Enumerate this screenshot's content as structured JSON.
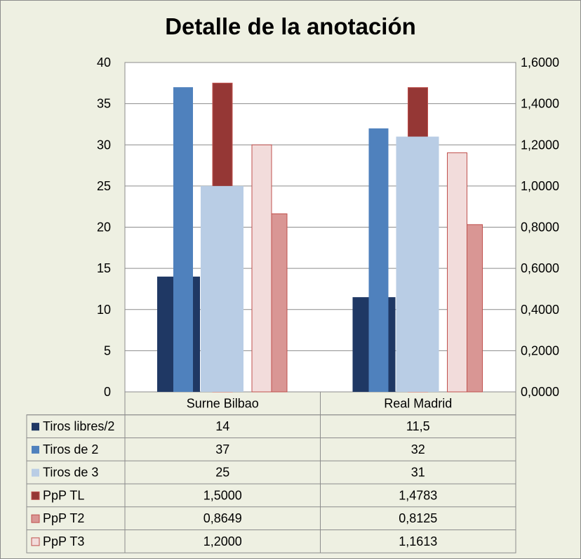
{
  "chart_data": {
    "type": "bar",
    "title": "Detalle de la anotación",
    "categories": [
      "Surne Bilbao",
      "Real Madrid"
    ],
    "y_left": {
      "range": [
        0,
        40
      ],
      "ticks": [
        "0",
        "5",
        "10",
        "15",
        "20",
        "25",
        "30",
        "35",
        "40"
      ]
    },
    "y_right": {
      "range": [
        0,
        1.6
      ],
      "ticks": [
        "0,0000",
        "0,2000",
        "0,4000",
        "0,6000",
        "0,8000",
        "1,0000",
        "1,2000",
        "1,4000",
        "1,6000"
      ]
    },
    "grid": true,
    "legend": "data-table",
    "series": [
      {
        "name": "Tiros libres/2",
        "values": [
          14,
          11.5
        ],
        "labels": [
          "14",
          "11,5"
        ],
        "axis": "left",
        "color": "#1f3864"
      },
      {
        "name": "Tiros de 2",
        "values": [
          37,
          32
        ],
        "labels": [
          "37",
          "32"
        ],
        "axis": "left",
        "color": "#4f81bd"
      },
      {
        "name": "Tiros de 3",
        "values": [
          25,
          31
        ],
        "labels": [
          "25",
          "31"
        ],
        "axis": "left",
        "color": "#b9cde5"
      },
      {
        "name": "PpP TL",
        "values": [
          1.5,
          1.4783
        ],
        "labels": [
          "1,5000",
          "1,4783"
        ],
        "axis": "right",
        "color": "#953735"
      },
      {
        "name": "PpP T2",
        "values": [
          0.8649,
          0.8125
        ],
        "labels": [
          "0,8649",
          "0,8125"
        ],
        "axis": "right",
        "color": "#d99694"
      },
      {
        "name": "PpP T3",
        "values": [
          1.2,
          1.1613
        ],
        "labels": [
          "1,2000",
          "1,1613"
        ],
        "axis": "right",
        "color": "#f2dcdb"
      }
    ]
  }
}
